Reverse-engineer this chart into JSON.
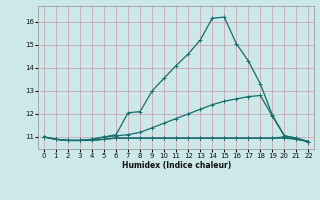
{
  "xlabel": "Humidex (Indice chaleur)",
  "bg_color": "#cce8e8",
  "grid_color": "#c8a8b8",
  "line_color": "#1a6b6b",
  "xlim": [
    -0.5,
    22.5
  ],
  "ylim": [
    10.5,
    16.7
  ],
  "yticks": [
    11,
    12,
    13,
    14,
    15,
    16
  ],
  "xticks": [
    0,
    1,
    2,
    3,
    4,
    5,
    6,
    7,
    8,
    9,
    10,
    11,
    12,
    13,
    14,
    15,
    16,
    17,
    18,
    19,
    20,
    21,
    22
  ],
  "series1_x": [
    0,
    1,
    2,
    3,
    4,
    5,
    6,
    7,
    8,
    9,
    10,
    11,
    12,
    13,
    14,
    15,
    16,
    17,
    18,
    19,
    20,
    21,
    22
  ],
  "series1_y": [
    11.0,
    10.9,
    10.85,
    10.85,
    10.85,
    10.9,
    10.95,
    10.95,
    10.95,
    10.95,
    10.95,
    10.95,
    10.95,
    10.95,
    10.95,
    10.95,
    10.95,
    10.95,
    10.95,
    10.95,
    10.95,
    10.9,
    10.8
  ],
  "series2_x": [
    0,
    1,
    2,
    3,
    4,
    5,
    6,
    7,
    8,
    9,
    10,
    11,
    12,
    13,
    14,
    15,
    16,
    17,
    18,
    19,
    20,
    21,
    22
  ],
  "series2_y": [
    11.0,
    10.9,
    10.85,
    10.85,
    10.85,
    10.9,
    10.95,
    10.95,
    10.95,
    10.95,
    10.95,
    10.95,
    10.95,
    10.95,
    10.95,
    10.95,
    10.95,
    10.95,
    10.95,
    10.95,
    11.0,
    10.9,
    10.8
  ],
  "series3_x": [
    0,
    1,
    2,
    3,
    4,
    5,
    6,
    7,
    8,
    9,
    10,
    11,
    12,
    13,
    14,
    15,
    16,
    17,
    18,
    19,
    20,
    21,
    22
  ],
  "series3_y": [
    11.0,
    10.9,
    10.85,
    10.85,
    10.9,
    11.0,
    11.05,
    11.1,
    11.2,
    11.4,
    11.6,
    11.8,
    12.0,
    12.2,
    12.4,
    12.55,
    12.65,
    12.75,
    12.8,
    11.9,
    11.05,
    10.95,
    10.8
  ],
  "series4_x": [
    0,
    1,
    2,
    3,
    4,
    5,
    6,
    7,
    8,
    9,
    10,
    11,
    12,
    13,
    14,
    15,
    16,
    17,
    18,
    19,
    20,
    21,
    22
  ],
  "series4_y": [
    11.0,
    10.9,
    10.85,
    10.85,
    10.9,
    11.0,
    11.1,
    12.05,
    12.1,
    13.0,
    13.55,
    14.1,
    14.6,
    15.2,
    16.15,
    16.2,
    15.05,
    14.3,
    13.3,
    11.95,
    11.05,
    10.95,
    10.8
  ]
}
